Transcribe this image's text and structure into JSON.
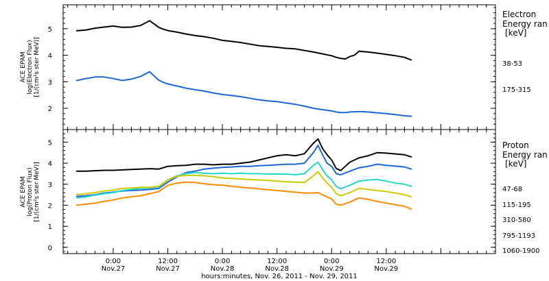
{
  "chart_data": [
    {
      "id": "electron",
      "type": "line",
      "y_label_lines": [
        "ACE EPAM",
        "log(Electron Flux)",
        "[1/(cm²s ster MeV)]"
      ],
      "ylim": [
        1.2,
        5.9
      ],
      "yticks": [
        2,
        3,
        4,
        5
      ],
      "legend": {
        "title_lines": [
          "Electron",
          "Energy ran"
        ],
        "unit": "[keV]"
      },
      "x_hours": [
        -8,
        -6,
        -4,
        -2,
        0,
        2,
        4,
        6,
        8,
        9,
        10,
        11,
        12,
        14,
        16,
        18,
        20,
        22,
        24,
        26,
        28,
        30,
        32,
        34,
        36,
        38,
        40,
        42,
        44,
        46,
        48,
        49,
        50,
        51,
        52,
        53,
        54,
        56,
        58,
        60,
        62,
        64,
        65.5
      ],
      "series": [
        {
          "name": "38-53",
          "color": "#000000",
          "values": [
            4.92,
            4.95,
            5.02,
            5.06,
            5.1,
            5.05,
            5.06,
            5.12,
            5.3,
            5.18,
            5.05,
            4.98,
            4.93,
            4.87,
            4.8,
            4.74,
            4.7,
            4.64,
            4.56,
            4.52,
            4.48,
            4.42,
            4.36,
            4.33,
            4.3,
            4.26,
            4.24,
            4.18,
            4.12,
            4.05,
            3.98,
            3.92,
            3.88,
            3.86,
            3.95,
            4.0,
            4.15,
            4.12,
            4.08,
            4.03,
            3.98,
            3.92,
            3.82
          ]
        },
        {
          "name": "175-315",
          "color": "#1a66d9",
          "values": [
            3.05,
            3.12,
            3.18,
            3.18,
            3.12,
            3.05,
            3.1,
            3.2,
            3.38,
            3.22,
            3.06,
            2.98,
            2.92,
            2.84,
            2.76,
            2.7,
            2.65,
            2.58,
            2.52,
            2.48,
            2.44,
            2.38,
            2.32,
            2.28,
            2.25,
            2.2,
            2.15,
            2.08,
            2.0,
            1.95,
            1.9,
            1.86,
            1.84,
            1.84,
            1.86,
            1.87,
            1.88,
            1.86,
            1.83,
            1.8,
            1.76,
            1.72,
            1.7
          ]
        }
      ]
    },
    {
      "id": "proton",
      "type": "line",
      "y_label_lines": [
        "ACE EPAM",
        "log(Proton Flux)",
        "[1/(cm²s ster MeV)]"
      ],
      "ylim": [
        -0.3,
        5.6
      ],
      "yticks": [
        0,
        1,
        2,
        3,
        4,
        5
      ],
      "legend": {
        "title_lines": [
          "Proton",
          "Energy ran"
        ],
        "unit": "[keV]"
      },
      "x_hours": [
        -8,
        -6,
        -4,
        -2,
        0,
        2,
        4,
        6,
        8,
        10,
        12,
        14,
        16,
        18,
        20,
        22,
        24,
        26,
        28,
        30,
        32,
        34,
        36,
        38,
        40,
        42,
        44,
        45,
        46,
        47,
        48,
        49,
        50,
        52,
        54,
        56,
        58,
        60,
        62,
        64,
        65.5
      ],
      "series": [
        {
          "name": "47-68",
          "color": "#000000",
          "values": [
            3.62,
            3.62,
            3.64,
            3.66,
            3.66,
            3.68,
            3.7,
            3.72,
            3.74,
            3.72,
            3.85,
            3.88,
            3.9,
            3.95,
            3.95,
            3.92,
            3.95,
            3.95,
            4.0,
            4.05,
            4.15,
            4.25,
            4.35,
            4.4,
            4.35,
            4.45,
            4.95,
            5.15,
            4.7,
            4.4,
            4.15,
            3.75,
            3.65,
            4.05,
            4.25,
            4.35,
            4.5,
            4.48,
            4.44,
            4.4,
            4.3
          ]
        },
        {
          "name": "115-195",
          "color": "#1a66d9",
          "values": [
            2.42,
            2.45,
            2.5,
            2.58,
            2.62,
            2.68,
            2.7,
            2.72,
            2.75,
            2.8,
            3.1,
            3.35,
            3.55,
            3.62,
            3.72,
            3.76,
            3.8,
            3.82,
            3.85,
            3.85,
            3.88,
            3.9,
            3.92,
            3.95,
            3.95,
            4.0,
            4.5,
            4.85,
            4.4,
            4.0,
            3.85,
            3.5,
            3.45,
            3.62,
            3.78,
            3.85,
            3.95,
            3.9,
            3.86,
            3.82,
            3.72
          ]
        },
        {
          "name": "310-580",
          "color": "#22d8c8",
          "values": [
            2.35,
            2.4,
            2.48,
            2.55,
            2.6,
            2.7,
            2.75,
            2.8,
            2.82,
            2.88,
            3.2,
            3.4,
            3.5,
            3.55,
            3.52,
            3.5,
            3.52,
            3.5,
            3.52,
            3.5,
            3.5,
            3.48,
            3.48,
            3.48,
            3.45,
            3.5,
            3.9,
            4.05,
            3.7,
            3.4,
            3.2,
            2.9,
            2.78,
            2.95,
            3.15,
            3.2,
            3.22,
            3.15,
            3.05,
            3.0,
            2.9
          ]
        },
        {
          "name": "795-1193",
          "color": "#cccc00",
          "values": [
            2.5,
            2.55,
            2.6,
            2.68,
            2.72,
            2.8,
            2.82,
            2.85,
            2.85,
            2.9,
            3.2,
            3.38,
            3.42,
            3.42,
            3.4,
            3.36,
            3.3,
            3.28,
            3.25,
            3.22,
            3.2,
            3.18,
            3.15,
            3.12,
            3.1,
            3.08,
            3.4,
            3.6,
            3.3,
            3.05,
            2.85,
            2.55,
            2.45,
            2.6,
            2.8,
            2.75,
            2.7,
            2.65,
            2.58,
            2.5,
            2.4
          ]
        },
        {
          "name": "1060-1900",
          "color": "#ff8c00",
          "values": [
            2.0,
            2.05,
            2.1,
            2.18,
            2.25,
            2.35,
            2.4,
            2.45,
            2.55,
            2.65,
            2.95,
            3.05,
            3.1,
            3.08,
            3.02,
            2.98,
            2.95,
            2.9,
            2.86,
            2.82,
            2.78,
            2.74,
            2.7,
            2.66,
            2.62,
            2.58,
            2.58,
            2.6,
            2.5,
            2.4,
            2.3,
            2.05,
            2.0,
            2.15,
            2.35,
            2.28,
            2.18,
            2.1,
            2.02,
            1.95,
            1.82
          ]
        }
      ]
    }
  ],
  "x_axis": {
    "xlim_hours": [
      -11,
      84
    ],
    "major_ticks": [
      {
        "hour": 0,
        "time": "0:00",
        "date": "Nov.27"
      },
      {
        "hour": 12,
        "time": "12:00",
        "date": "Nov.27"
      },
      {
        "hour": 24,
        "time": "0:00",
        "date": "Nov.28"
      },
      {
        "hour": 36,
        "time": "12:00",
        "date": "Nov.28"
      },
      {
        "hour": 48,
        "time": "0:00",
        "date": "Nov.29"
      },
      {
        "hour": 60,
        "time": "12:00",
        "date": "Nov.29"
      }
    ],
    "label": "hours:minutes, Nov. 26, 2011 - Nov. 29, 2011"
  }
}
